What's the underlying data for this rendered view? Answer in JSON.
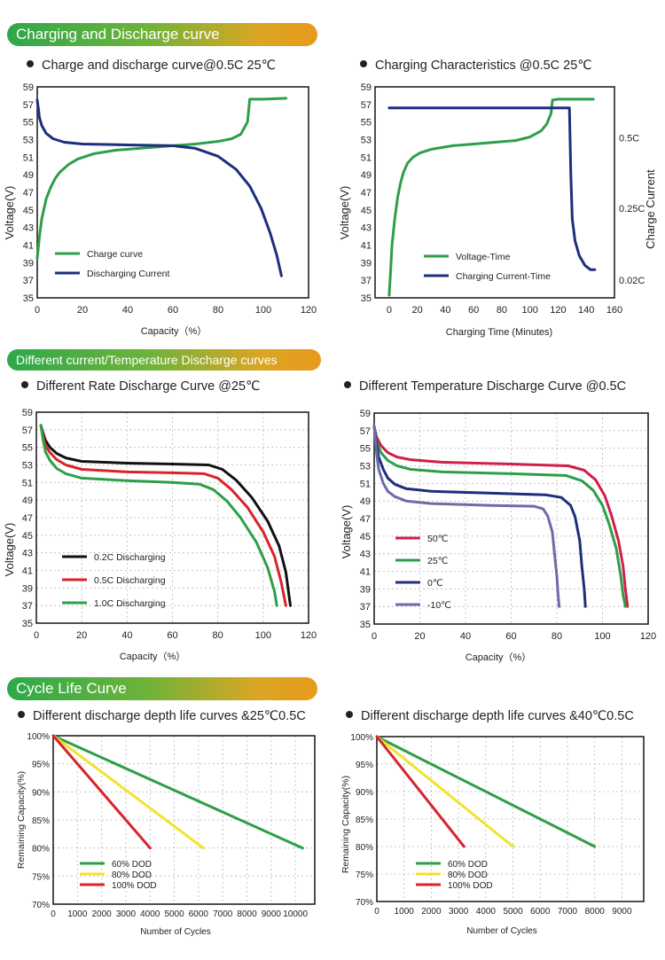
{
  "sections": {
    "s1": "Charging and Discharge curve",
    "s2": "Different current/Temperature Discharge curves",
    "s3": "Cycle Life Curve"
  },
  "headings": {
    "h1": "Charge and discharge curve@0.5C 25℃",
    "h2": "Charging Characteristics @0.5C 25℃",
    "h3": "Different Rate Discharge Curve @25℃",
    "h4": "Different Temperature Discharge Curve @0.5C",
    "h5": "Different discharge depth life curves &25℃0.5C",
    "h6": "Different discharge depth life curves &40℃0.5C"
  },
  "chart_data": [
    {
      "id": "c1",
      "type": "line",
      "xlabel": "Capacity（%）",
      "ylabel": "Voltage(V)",
      "xlim": [
        0,
        120
      ],
      "ylim": [
        35,
        59
      ],
      "xticks": [
        0,
        20,
        40,
        60,
        80,
        100,
        120
      ],
      "yticks": [
        35,
        37,
        39,
        41,
        43,
        45,
        47,
        49,
        51,
        53,
        55,
        57,
        59
      ],
      "grid": false,
      "legend": "bottom-left",
      "series": [
        {
          "name": "Charge curve",
          "color": "#2e9e48",
          "points": [
            [
              0,
              39.5
            ],
            [
              1,
              42
            ],
            [
              2,
              44
            ],
            [
              4,
              46.3
            ],
            [
              6,
              47.6
            ],
            [
              8,
              48.6
            ],
            [
              10,
              49.3
            ],
            [
              14,
              50.2
            ],
            [
              18,
              50.8
            ],
            [
              25,
              51.4
            ],
            [
              35,
              51.8
            ],
            [
              50,
              52.1
            ],
            [
              60,
              52.3
            ],
            [
              70,
              52.5
            ],
            [
              80,
              52.8
            ],
            [
              86,
              53.1
            ],
            [
              90,
              53.6
            ],
            [
              93,
              55
            ],
            [
              94,
              57.6
            ],
            [
              100,
              57.6
            ],
            [
              110,
              57.7
            ]
          ]
        },
        {
          "name": "Discharging Current",
          "color": "#1c2f7c",
          "points": [
            [
              0,
              57.5
            ],
            [
              0.5,
              56.5
            ],
            [
              1,
              55.5
            ],
            [
              2,
              54.6
            ],
            [
              4,
              53.7
            ],
            [
              7,
              53.1
            ],
            [
              12,
              52.7
            ],
            [
              20,
              52.5
            ],
            [
              40,
              52.4
            ],
            [
              60,
              52.3
            ],
            [
              70,
              52
            ],
            [
              80,
              51.1
            ],
            [
              88,
              49.6
            ],
            [
              94,
              47.7
            ],
            [
              99,
              45.2
            ],
            [
              103,
              42.4
            ],
            [
              106,
              39.8
            ],
            [
              108,
              37.5
            ]
          ]
        }
      ]
    },
    {
      "id": "c2",
      "type": "line",
      "xlabel": "Charging Time (Minutes)",
      "ylabel": "Voltage(V)",
      "y2label": "Charge Current",
      "xlim": [
        -10,
        160
      ],
      "ylim": [
        35,
        59
      ],
      "xticks": [
        0,
        20,
        40,
        60,
        80,
        100,
        120,
        140,
        160
      ],
      "yticks": [
        35,
        37,
        39,
        41,
        43,
        45,
        47,
        49,
        51,
        53,
        55,
        57,
        59
      ],
      "y2ticks": [
        {
          "label": "0.5C",
          "y": 53.2
        },
        {
          "label": "0.25C",
          "y": 45.2
        },
        {
          "label": "0.02C",
          "y": 37
        }
      ],
      "grid": false,
      "legend": "bottom-left",
      "series": [
        {
          "name": "Voltage-Time",
          "color": "#2e9e48",
          "points": [
            [
              0,
              35.3
            ],
            [
              1,
              38
            ],
            [
              2,
              41
            ],
            [
              4,
              44
            ],
            [
              6,
              46.4
            ],
            [
              8,
              48
            ],
            [
              10,
              49.2
            ],
            [
              13,
              50.3
            ],
            [
              17,
              51
            ],
            [
              22,
              51.5
            ],
            [
              30,
              51.9
            ],
            [
              45,
              52.3
            ],
            [
              60,
              52.5
            ],
            [
              75,
              52.7
            ],
            [
              90,
              52.9
            ],
            [
              100,
              53.3
            ],
            [
              108,
              54
            ],
            [
              112,
              54.8
            ],
            [
              115,
              56
            ],
            [
              116,
              57.5
            ],
            [
              120,
              57.6
            ],
            [
              145,
              57.6
            ]
          ]
        },
        {
          "name": "Charging Current-Time",
          "color": "#1c2f7c",
          "points": [
            [
              0,
              56.6
            ],
            [
              60,
              56.6
            ],
            [
              128,
              56.6
            ],
            [
              129,
              49
            ],
            [
              130,
              44
            ],
            [
              132,
              41.5
            ],
            [
              135,
              39.8
            ],
            [
              139,
              38.7
            ],
            [
              143,
              38.2
            ],
            [
              146,
              38.2
            ]
          ]
        }
      ]
    },
    {
      "id": "c3",
      "type": "line",
      "xlabel": "Capacity（%）",
      "ylabel": "Voltage(V)",
      "xlim": [
        0,
        120
      ],
      "ylim": [
        35,
        59
      ],
      "xticks": [
        0,
        20,
        40,
        60,
        80,
        100,
        120
      ],
      "yticks": [
        35,
        37,
        39,
        41,
        43,
        45,
        47,
        49,
        51,
        53,
        55,
        57,
        59
      ],
      "grid": true,
      "legend": "bottom-left",
      "series": [
        {
          "name": "0.2C Discharging",
          "color": "#111111",
          "points": [
            [
              2,
              57.5
            ],
            [
              3,
              56.6
            ],
            [
              4,
              55.8
            ],
            [
              6,
              55
            ],
            [
              9,
              54.3
            ],
            [
              13,
              53.8
            ],
            [
              20,
              53.4
            ],
            [
              40,
              53.2
            ],
            [
              60,
              53.1
            ],
            [
              76,
              53
            ],
            [
              82,
              52.5
            ],
            [
              88,
              51.3
            ],
            [
              95,
              49.3
            ],
            [
              102,
              46.6
            ],
            [
              107,
              43.8
            ],
            [
              110,
              40.8
            ],
            [
              112,
              37
            ]
          ]
        },
        {
          "name": "0.5C Discharging",
          "color": "#d8232a",
          "points": [
            [
              2,
              57.5
            ],
            [
              3,
              56.3
            ],
            [
              4,
              55.2
            ],
            [
              6,
              54.4
            ],
            [
              9,
              53.6
            ],
            [
              13,
              53
            ],
            [
              20,
              52.5
            ],
            [
              40,
              52.2
            ],
            [
              60,
              52.1
            ],
            [
              74,
              52
            ],
            [
              80,
              51.5
            ],
            [
              86,
              50.2
            ],
            [
              93,
              48.2
            ],
            [
              100,
              45.4
            ],
            [
              105,
              42.6
            ],
            [
              108,
              39.6
            ],
            [
              110,
              37
            ]
          ]
        },
        {
          "name": "1.0C Discharging",
          "color": "#2e9e48",
          "points": [
            [
              2,
              57.5
            ],
            [
              3,
              55.8
            ],
            [
              4,
              54.5
            ],
            [
              6,
              53.5
            ],
            [
              9,
              52.6
            ],
            [
              13,
              52
            ],
            [
              20,
              51.5
            ],
            [
              40,
              51.2
            ],
            [
              60,
              51
            ],
            [
              72,
              50.8
            ],
            [
              78,
              50.2
            ],
            [
              84,
              48.9
            ],
            [
              90,
              47
            ],
            [
              97,
              44.2
            ],
            [
              102,
              41.3
            ],
            [
              105,
              38.6
            ],
            [
              106,
              37
            ]
          ]
        }
      ]
    },
    {
      "id": "c4",
      "type": "line",
      "xlabel": "Capacity（%）",
      "ylabel": "Voltage(V)",
      "xlim": [
        0,
        120
      ],
      "ylim": [
        35,
        59
      ],
      "xticks": [
        0,
        20,
        40,
        60,
        80,
        100,
        120
      ],
      "yticks": [
        35,
        37,
        39,
        41,
        43,
        45,
        47,
        49,
        51,
        53,
        55,
        57,
        59
      ],
      "grid": true,
      "legend": "bottom-left",
      "series": [
        {
          "name": "50℃",
          "color": "#d01f4a",
          "points": [
            [
              0,
              57.5
            ],
            [
              1,
              56.3
            ],
            [
              3,
              55.3
            ],
            [
              6,
              54.5
            ],
            [
              10,
              54
            ],
            [
              16,
              53.7
            ],
            [
              30,
              53.4
            ],
            [
              60,
              53.2
            ],
            [
              85,
              53
            ],
            [
              92,
              52.5
            ],
            [
              97,
              51.4
            ],
            [
              101,
              49.6
            ],
            [
              104,
              47.3
            ],
            [
              107,
              44.5
            ],
            [
              109,
              41.6
            ],
            [
              110,
              39
            ],
            [
              111,
              37
            ]
          ]
        },
        {
          "name": "25℃",
          "color": "#2e9e48",
          "points": [
            [
              0,
              57.5
            ],
            [
              1,
              55.8
            ],
            [
              3,
              54.5
            ],
            [
              6,
              53.6
            ],
            [
              10,
              53
            ],
            [
              16,
              52.6
            ],
            [
              30,
              52.3
            ],
            [
              60,
              52.1
            ],
            [
              84,
              51.9
            ],
            [
              91,
              51.3
            ],
            [
              96,
              50.2
            ],
            [
              100,
              48.5
            ],
            [
              103,
              46.3
            ],
            [
              106,
              43.6
            ],
            [
              108,
              40.5
            ],
            [
              109,
              38.3
            ],
            [
              110,
              37
            ]
          ]
        },
        {
          "name": "0℃",
          "color": "#1c2f7c",
          "points": [
            [
              0,
              57.5
            ],
            [
              1,
              55.5
            ],
            [
              2,
              54
            ],
            [
              4,
              52.6
            ],
            [
              6,
              51.6
            ],
            [
              9,
              50.9
            ],
            [
              14,
              50.4
            ],
            [
              25,
              50.1
            ],
            [
              50,
              49.9
            ],
            [
              75,
              49.7
            ],
            [
              82,
              49.4
            ],
            [
              86,
              48.5
            ],
            [
              88,
              47.2
            ],
            [
              90,
              44.5
            ],
            [
              91,
              41.5
            ],
            [
              92,
              39
            ],
            [
              92.5,
              37
            ]
          ]
        },
        {
          "name": "-10℃",
          "color": "#6f6aa8",
          "points": [
            [
              0,
              57.5
            ],
            [
              1,
              54.5
            ],
            [
              2,
              52.6
            ],
            [
              4,
              51
            ],
            [
              6,
              50.1
            ],
            [
              9,
              49.5
            ],
            [
              14,
              49
            ],
            [
              25,
              48.7
            ],
            [
              50,
              48.5
            ],
            [
              70,
              48.4
            ],
            [
              74,
              48.1
            ],
            [
              76,
              47.3
            ],
            [
              78,
              45.5
            ],
            [
              79,
              43
            ],
            [
              80,
              40.5
            ],
            [
              80.5,
              38.5
            ],
            [
              81,
              37
            ]
          ]
        }
      ]
    },
    {
      "id": "c5",
      "type": "line",
      "xlabel": "Number of Cycles",
      "ylabel": "Remaining Capacity(%)",
      "xlim": [
        0,
        10800
      ],
      "ylim": [
        70,
        100
      ],
      "xticks": [
        0,
        1000,
        2000,
        3000,
        4000,
        5000,
        6000,
        7000,
        8000,
        9000,
        10000
      ],
      "yticks": [
        70,
        75,
        80,
        85,
        90,
        95,
        100
      ],
      "grid": true,
      "legend": "bottom-left",
      "series": [
        {
          "name": "60% DOD",
          "color": "#2e9e48",
          "points": [
            [
              0,
              100
            ],
            [
              10300,
              80
            ]
          ]
        },
        {
          "name": "80% DOD",
          "color": "#f2e32a",
          "points": [
            [
              0,
              100
            ],
            [
              6200,
              80
            ]
          ]
        },
        {
          "name": "100% DOD",
          "color": "#d8232a",
          "points": [
            [
              0,
              100
            ],
            [
              4000,
              80
            ]
          ]
        }
      ]
    },
    {
      "id": "c6",
      "type": "line",
      "xlabel": "Number of Cycles",
      "ylabel": "Remaining Capacity(%)",
      "xlim": [
        0,
        9800
      ],
      "ylim": [
        70,
        100
      ],
      "xticks": [
        0,
        1000,
        2000,
        3000,
        4000,
        5000,
        6000,
        7000,
        8000,
        9000
      ],
      "yticks": [
        70,
        75,
        80,
        85,
        90,
        95,
        100
      ],
      "grid": true,
      "legend": "bottom-left",
      "series": [
        {
          "name": "60% DOD",
          "color": "#2e9e48",
          "points": [
            [
              0,
              100
            ],
            [
              8000,
              80
            ]
          ]
        },
        {
          "name": "80% DOD",
          "color": "#f2e32a",
          "points": [
            [
              0,
              100
            ],
            [
              5000,
              80
            ]
          ]
        },
        {
          "name": "100% DOD",
          "color": "#d8232a",
          "points": [
            [
              0,
              100
            ],
            [
              3200,
              80
            ]
          ]
        }
      ]
    }
  ]
}
